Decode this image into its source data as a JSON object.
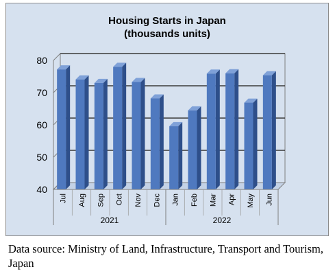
{
  "chart_data": {
    "type": "bar",
    "title": "Housing Starts in Japan",
    "subtitle": "(thousands units)",
    "categories": [
      "Jul",
      "Aug",
      "Sep",
      "Oct",
      "Nov",
      "Dec",
      "Jan",
      "Feb",
      "Mar",
      "Apr",
      "May",
      "Jun"
    ],
    "values": [
      77.2,
      74.1,
      73.0,
      78.0,
      73.3,
      68.2,
      59.6,
      64.5,
      75.9,
      76.0,
      66.9,
      75.4
    ],
    "groups": [
      {
        "label": "2021",
        "count": 6
      },
      {
        "label": "2022",
        "count": 6
      }
    ],
    "ylim": [
      40,
      80
    ],
    "yticks": [
      "40",
      "50",
      "60",
      "70",
      "80"
    ],
    "xlabel": "",
    "ylabel": "",
    "grid": true,
    "legend": "none",
    "colors": {
      "background": "#d6e1ef",
      "bar_front": "#4f79bf",
      "bar_side": "#2e4f8a",
      "bar_top": "#7fa1d8",
      "frame": "#8c8c8c"
    }
  },
  "caption": "Data source: Ministry of Land, Infrastructure, Transport and Tourism, Japan"
}
